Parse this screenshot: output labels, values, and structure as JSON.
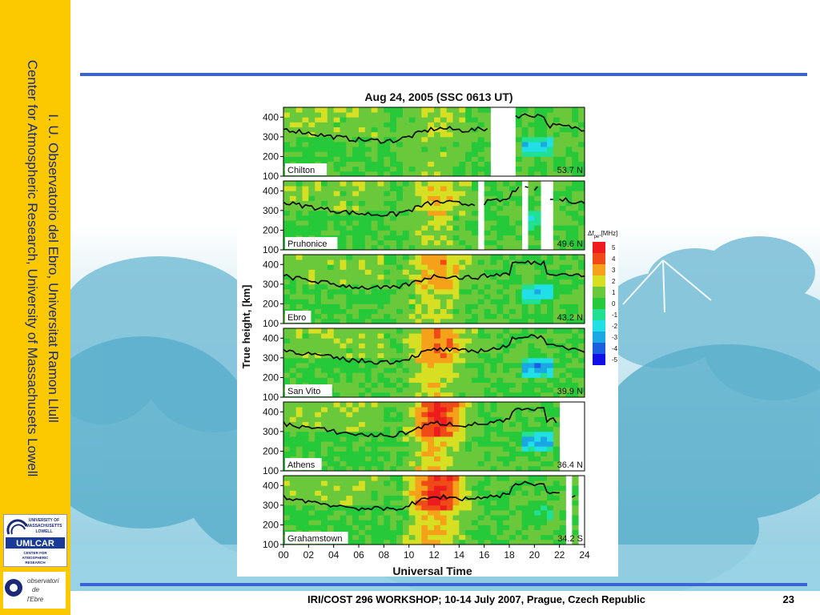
{
  "sidebar": {
    "line1": "I. U. Observatorio del Ebro, Universitat Ramon Llull",
    "line2": "Center for Atmospheric Research, University of Massachusets Lowell"
  },
  "logos": {
    "umass_text": [
      "UNIVERSITY OF",
      "MASSACHUSETTS",
      "LOWELL"
    ],
    "umlcar": "UMLCAR",
    "umlcar_sub": [
      "CENTER FOR",
      "ATMOSPHERIC",
      "RESEARCH"
    ],
    "observatory_text": [
      "observatori",
      "de",
      "l'Ebre"
    ]
  },
  "footer": {
    "text": "IRI/COST 296 WORKSHOP; 10-14 July 2007, Prague, Czech Republic",
    "page": "23"
  },
  "colors": {
    "sidebar": "#fcc900",
    "rule": "#3a63d8",
    "text": "#1a2a78"
  },
  "chart_data": {
    "type": "heatmap",
    "title": "Aug 24, 2005 (SSC 0613 UT)",
    "xlabel": "Universal Time",
    "ylabel": "True height, [km]",
    "x_ticks": [
      "00",
      "02",
      "04",
      "06",
      "08",
      "10",
      "12",
      "14",
      "16",
      "18",
      "20",
      "22",
      "24"
    ],
    "y_ticks": [
      100,
      200,
      300,
      400
    ],
    "xlim": [
      0,
      24
    ],
    "ylim": [
      100,
      450
    ],
    "legend": {
      "title": "Δf",
      "title_sub": "pe",
      "title_unit": ",[MHz]",
      "values": [
        "5",
        "4",
        "3",
        "2",
        "1",
        "0",
        "-1",
        "-2",
        "-3",
        "-4",
        "-5"
      ],
      "colors": [
        "#ee1c1c",
        "#f04a18",
        "#f5a21a",
        "#d7df23",
        "#6ac83b",
        "#25c939",
        "#21e093",
        "#20e0e6",
        "#1aa7e4",
        "#1a5fe0",
        "#1010e6"
      ]
    },
    "panels": [
      {
        "station": "Chilton",
        "lat": "53.7 N"
      },
      {
        "station": "Pruhonice",
        "lat": "49.6 N"
      },
      {
        "station": "Ebro",
        "lat": "43.2 N"
      },
      {
        "station": "San Vito",
        "lat": "39.9 N"
      },
      {
        "station": "Athens",
        "lat": "36.4 N"
      },
      {
        "station": "Grahamstown",
        "lat": "34.2 S"
      }
    ]
  }
}
